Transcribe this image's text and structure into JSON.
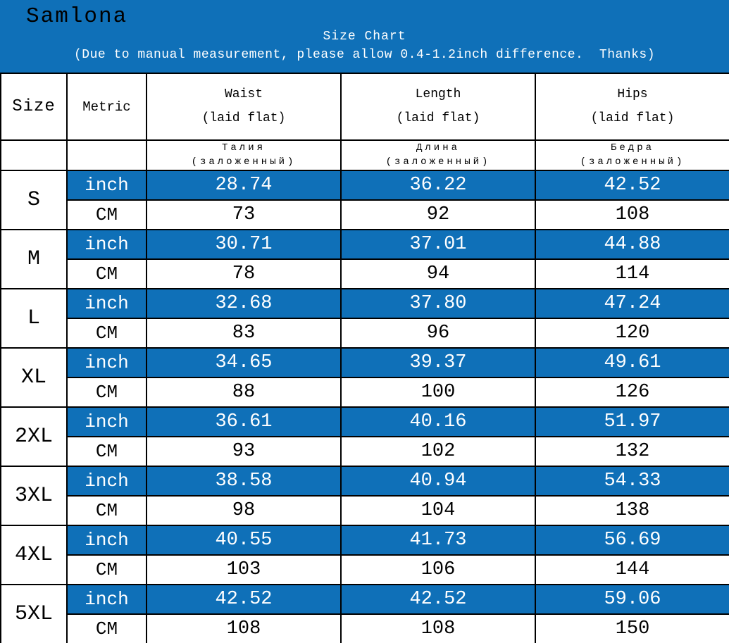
{
  "banner": {
    "brand": "Samlona",
    "title": "Size Chart",
    "subtitle": "(Due to manual measurement, please allow 0.4-1.2inch difference.  Thanks)"
  },
  "colors": {
    "accent_blue": "#0f70b8",
    "border_black": "#000000",
    "text_on_blue": "#ffffff",
    "text_black": "#000000"
  },
  "chart_data": {
    "type": "table",
    "title": "Size Chart",
    "header": {
      "size": "Size",
      "metric": "Metric",
      "measures": [
        {
          "en": "Waist",
          "en_sub": "(laid flat)",
          "ru": "Талия",
          "ru_sub": "(заложенный)"
        },
        {
          "en": "Length",
          "en_sub": "(laid flat)",
          "ru": "Длина",
          "ru_sub": "(заложенный)"
        },
        {
          "en": "Hips",
          "en_sub": "(laid flat)",
          "ru": "Бедра",
          "ru_sub": "(заложенный)"
        }
      ],
      "units": {
        "inch": "inch",
        "cm": "CM"
      }
    },
    "rows": [
      {
        "size": "S",
        "inch": [
          "28.74",
          "36.22",
          "42.52"
        ],
        "cm": [
          "73",
          "92",
          "108"
        ]
      },
      {
        "size": "M",
        "inch": [
          "30.71",
          "37.01",
          "44.88"
        ],
        "cm": [
          "78",
          "94",
          "114"
        ]
      },
      {
        "size": "L",
        "inch": [
          "32.68",
          "37.80",
          "47.24"
        ],
        "cm": [
          "83",
          "96",
          "120"
        ]
      },
      {
        "size": "XL",
        "inch": [
          "34.65",
          "39.37",
          "49.61"
        ],
        "cm": [
          "88",
          "100",
          "126"
        ]
      },
      {
        "size": "2XL",
        "inch": [
          "36.61",
          "40.16",
          "51.97"
        ],
        "cm": [
          "93",
          "102",
          "132"
        ]
      },
      {
        "size": "3XL",
        "inch": [
          "38.58",
          "40.94",
          "54.33"
        ],
        "cm": [
          "98",
          "104",
          "138"
        ]
      },
      {
        "size": "4XL",
        "inch": [
          "40.55",
          "41.73",
          "56.69"
        ],
        "cm": [
          "103",
          "106",
          "144"
        ]
      },
      {
        "size": "5XL",
        "inch": [
          "42.52",
          "42.52",
          "59.06"
        ],
        "cm": [
          "108",
          "108",
          "150"
        ]
      }
    ]
  }
}
